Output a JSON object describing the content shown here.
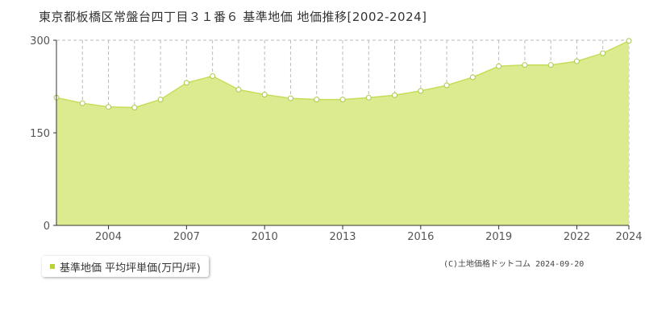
{
  "chart_data": {
    "type": "area",
    "title": "東京都板橋区常盤台四丁目３１番６ 基準地価 地価推移[2002-2024]",
    "x": [
      2002,
      2003,
      2004,
      2005,
      2006,
      2007,
      2008,
      2009,
      2010,
      2011,
      2012,
      2013,
      2014,
      2015,
      2016,
      2017,
      2018,
      2019,
      2020,
      2021,
      2022,
      2023,
      2024
    ],
    "series": [
      {
        "name": "基準地価 平均坪単価(万円/坪)",
        "values": [
          207,
          198,
          192,
          191,
          204,
          231,
          242,
          220,
          212,
          206,
          204,
          204,
          207,
          211,
          218,
          227,
          240,
          258,
          260,
          260,
          266,
          279,
          299
        ]
      }
    ],
    "xticks": [
      2004,
      2007,
      2010,
      2013,
      2016,
      2019,
      2022,
      2024
    ],
    "yticks": [
      0,
      150,
      300
    ],
    "ylim": [
      0,
      300
    ],
    "xlim": [
      2002,
      2024
    ],
    "grid": true,
    "colors": {
      "fill": "#dceb8f",
      "line": "#c5de5a",
      "marker_fill": "#ffffff",
      "grid": "#bbbbbb"
    }
  },
  "legend": {
    "label": "基準地価 平均坪単価(万円/坪)",
    "swatch_color": "#b8d432"
  },
  "copyright": "(C)土地価格ドットコム 2024-09-20"
}
